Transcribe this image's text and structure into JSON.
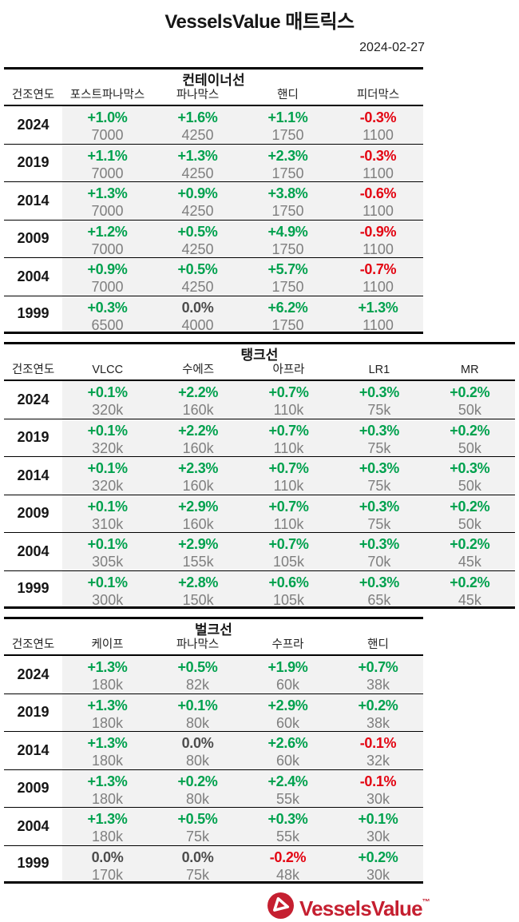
{
  "title": "VesselsValue 매트릭스",
  "date": "2024-02-27",
  "colors": {
    "positive": "#00a14e",
    "negative": "#e30613",
    "neutral": "#4d4d4d",
    "value_gray": "#7f7f7f",
    "row_background": "#f2f2f2",
    "line": "#000000",
    "logo_red": "#c51f30"
  },
  "tables": [
    {
      "key": "container",
      "title": "컨테이너선",
      "row_header": "건조연도",
      "wide": false,
      "columns": [
        "포스트파나막스",
        "파나막스",
        "핸디",
        "피더막스"
      ],
      "rows": [
        {
          "year": "2024",
          "cells": [
            {
              "pct": "+1.0%",
              "val": "7000"
            },
            {
              "pct": "+1.6%",
              "val": "4250"
            },
            {
              "pct": "+1.1%",
              "val": "1750"
            },
            {
              "pct": "-0.3%",
              "val": "1100"
            }
          ]
        },
        {
          "year": "2019",
          "cells": [
            {
              "pct": "+1.1%",
              "val": "7000"
            },
            {
              "pct": "+1.3%",
              "val": "4250"
            },
            {
              "pct": "+2.3%",
              "val": "1750"
            },
            {
              "pct": "-0.3%",
              "val": "1100"
            }
          ]
        },
        {
          "year": "2014",
          "cells": [
            {
              "pct": "+1.3%",
              "val": "7000"
            },
            {
              "pct": "+0.9%",
              "val": "4250"
            },
            {
              "pct": "+3.8%",
              "val": "1750"
            },
            {
              "pct": "-0.6%",
              "val": "1100"
            }
          ]
        },
        {
          "year": "2009",
          "cells": [
            {
              "pct": "+1.2%",
              "val": "7000"
            },
            {
              "pct": "+0.5%",
              "val": "4250"
            },
            {
              "pct": "+4.9%",
              "val": "1750"
            },
            {
              "pct": "-0.9%",
              "val": "1100"
            }
          ]
        },
        {
          "year": "2004",
          "cells": [
            {
              "pct": "+0.9%",
              "val": "7000"
            },
            {
              "pct": "+0.5%",
              "val": "4250"
            },
            {
              "pct": "+5.7%",
              "val": "1750"
            },
            {
              "pct": "-0.7%",
              "val": "1100"
            }
          ]
        },
        {
          "year": "1999",
          "cells": [
            {
              "pct": "+0.3%",
              "val": "6500"
            },
            {
              "pct": "0.0%",
              "val": "4000"
            },
            {
              "pct": "+6.2%",
              "val": "1750"
            },
            {
              "pct": "+1.3%",
              "val": "1100"
            }
          ]
        }
      ]
    },
    {
      "key": "tanker",
      "title": "탱크선",
      "row_header": "건조연도",
      "wide": true,
      "columns": [
        "VLCC",
        "수에즈",
        "아프라",
        "LR1",
        "MR"
      ],
      "rows": [
        {
          "year": "2024",
          "cells": [
            {
              "pct": "+0.1%",
              "val": "320k"
            },
            {
              "pct": "+2.2%",
              "val": "160k"
            },
            {
              "pct": "+0.7%",
              "val": "110k"
            },
            {
              "pct": "+0.3%",
              "val": "75k"
            },
            {
              "pct": "+0.2%",
              "val": "50k"
            }
          ]
        },
        {
          "year": "2019",
          "cells": [
            {
              "pct": "+0.1%",
              "val": "320k"
            },
            {
              "pct": "+2.2%",
              "val": "160k"
            },
            {
              "pct": "+0.7%",
              "val": "110k"
            },
            {
              "pct": "+0.3%",
              "val": "75k"
            },
            {
              "pct": "+0.2%",
              "val": "50k"
            }
          ]
        },
        {
          "year": "2014",
          "cells": [
            {
              "pct": "+0.1%",
              "val": "320k"
            },
            {
              "pct": "+2.3%",
              "val": "160k"
            },
            {
              "pct": "+0.7%",
              "val": "110k"
            },
            {
              "pct": "+0.3%",
              "val": "75k"
            },
            {
              "pct": "+0.3%",
              "val": "50k"
            }
          ]
        },
        {
          "year": "2009",
          "cells": [
            {
              "pct": "+0.1%",
              "val": "310k"
            },
            {
              "pct": "+2.9%",
              "val": "160k"
            },
            {
              "pct": "+0.7%",
              "val": "110k"
            },
            {
              "pct": "+0.3%",
              "val": "75k"
            },
            {
              "pct": "+0.2%",
              "val": "50k"
            }
          ]
        },
        {
          "year": "2004",
          "cells": [
            {
              "pct": "+0.1%",
              "val": "305k"
            },
            {
              "pct": "+2.9%",
              "val": "155k"
            },
            {
              "pct": "+0.7%",
              "val": "105k"
            },
            {
              "pct": "+0.3%",
              "val": "70k"
            },
            {
              "pct": "+0.2%",
              "val": "45k"
            }
          ]
        },
        {
          "year": "1999",
          "cells": [
            {
              "pct": "+0.1%",
              "val": "300k"
            },
            {
              "pct": "+2.8%",
              "val": "150k"
            },
            {
              "pct": "+0.6%",
              "val": "105k"
            },
            {
              "pct": "+0.3%",
              "val": "65k"
            },
            {
              "pct": "+0.2%",
              "val": "45k"
            }
          ]
        }
      ]
    },
    {
      "key": "bulker",
      "title": "벌크선",
      "row_header": "건조연도",
      "wide": false,
      "columns": [
        "케이프",
        "파나막스",
        "수프라",
        "핸디"
      ],
      "rows": [
        {
          "year": "2024",
          "cells": [
            {
              "pct": "+1.3%",
              "val": "180k"
            },
            {
              "pct": "+0.5%",
              "val": "82k"
            },
            {
              "pct": "+1.9%",
              "val": "60k"
            },
            {
              "pct": "+0.7%",
              "val": "38k"
            }
          ]
        },
        {
          "year": "2019",
          "cells": [
            {
              "pct": "+1.3%",
              "val": "180k"
            },
            {
              "pct": "+0.1%",
              "val": "80k"
            },
            {
              "pct": "+2.9%",
              "val": "60k"
            },
            {
              "pct": "+0.2%",
              "val": "38k"
            }
          ]
        },
        {
          "year": "2014",
          "cells": [
            {
              "pct": "+1.3%",
              "val": "180k"
            },
            {
              "pct": "0.0%",
              "val": "80k"
            },
            {
              "pct": "+2.6%",
              "val": "60k"
            },
            {
              "pct": "-0.1%",
              "val": "32k"
            }
          ]
        },
        {
          "year": "2009",
          "cells": [
            {
              "pct": "+1.3%",
              "val": "180k"
            },
            {
              "pct": "+0.2%",
              "val": "80k"
            },
            {
              "pct": "+2.4%",
              "val": "55k"
            },
            {
              "pct": "-0.1%",
              "val": "30k"
            }
          ]
        },
        {
          "year": "2004",
          "cells": [
            {
              "pct": "+1.3%",
              "val": "180k"
            },
            {
              "pct": "+0.5%",
              "val": "75k"
            },
            {
              "pct": "+0.3%",
              "val": "55k"
            },
            {
              "pct": "+0.1%",
              "val": "30k"
            }
          ]
        },
        {
          "year": "1999",
          "cells": [
            {
              "pct": "0.0%",
              "val": "170k"
            },
            {
              "pct": "0.0%",
              "val": "75k"
            },
            {
              "pct": "-0.2%",
              "val": "48k"
            },
            {
              "pct": "+0.2%",
              "val": "30k"
            }
          ]
        }
      ]
    }
  ],
  "logo": {
    "text": "VesselsValue",
    "trademark": "™"
  }
}
